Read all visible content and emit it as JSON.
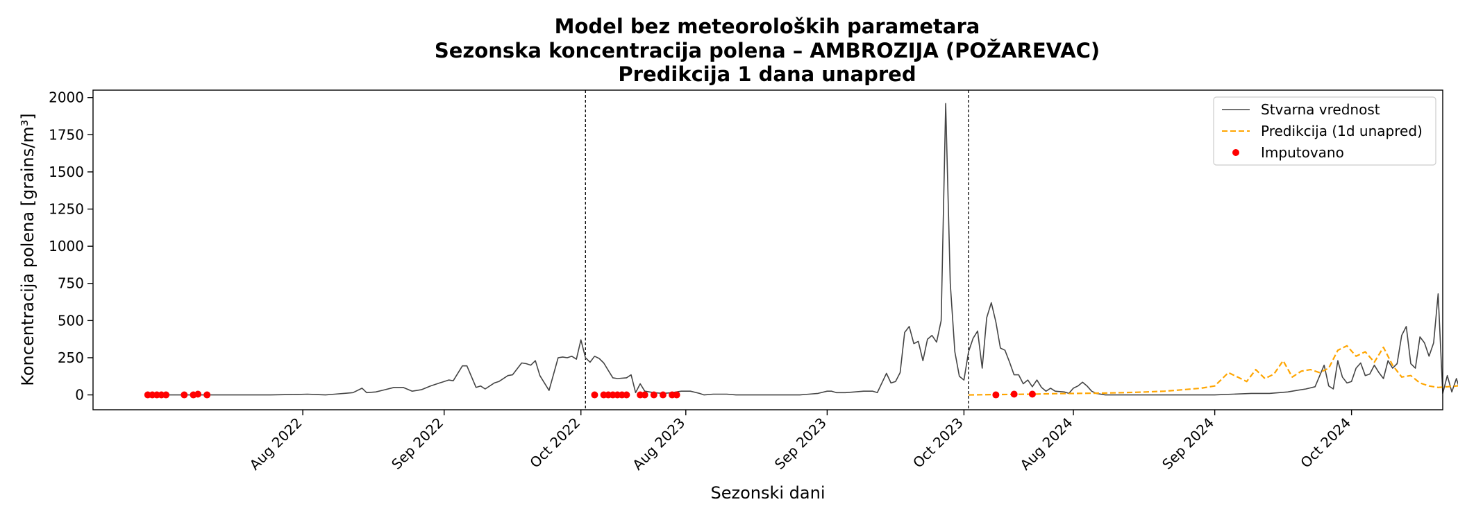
{
  "chart_data": {
    "type": "line",
    "title_lines": [
      "Model bez meteoroloških parametara",
      "Sezonska koncentracija polena – AMBROZIJA (POŽAREVAC)",
      "Predikcija 1 dana unapred"
    ],
    "xlabel": "Sezonski dani",
    "ylabel": "Koncentracija polena [grains/m³]",
    "ylim": [
      -100,
      2050
    ],
    "yticks": [
      0,
      250,
      500,
      750,
      1000,
      1250,
      1500,
      1750,
      2000
    ],
    "x_range_days": [
      -11,
      285
    ],
    "x_ticks": [
      {
        "day": 35,
        "label": "Aug 2022"
      },
      {
        "day": 66,
        "label": "Sep 2022"
      },
      {
        "day": 96,
        "label": "Oct 2022"
      },
      {
        "day": 119,
        "label": "Aug 2023"
      },
      {
        "day": 150,
        "label": "Sep 2023"
      },
      {
        "day": 180,
        "label": "Oct 2023"
      },
      {
        "day": 204,
        "label": "Aug 2024"
      },
      {
        "day": 235,
        "label": "Sep 2024"
      },
      {
        "day": 265,
        "label": "Oct 2024"
      }
    ],
    "season_boundaries": [
      97,
      181
    ],
    "grid": false,
    "legend_position": "top-right",
    "legend": {
      "actual": "Stvarna vrednost",
      "prediction": "Predikcija (1d unapred)",
      "imputed": "Imputovano"
    },
    "series": [
      {
        "name": "Stvarna vrednost",
        "color": "#444444",
        "points": [
          [
            1,
            0
          ],
          [
            4,
            0
          ],
          [
            8,
            0
          ],
          [
            12,
            0
          ],
          [
            16,
            0
          ],
          [
            20,
            0
          ],
          [
            24,
            0
          ],
          [
            28,
            0
          ],
          [
            32,
            2
          ],
          [
            34,
            3
          ],
          [
            36,
            5
          ],
          [
            38,
            2
          ],
          [
            40,
            0
          ],
          [
            42,
            5
          ],
          [
            44,
            10
          ],
          [
            46,
            15
          ],
          [
            48,
            45
          ],
          [
            49,
            15
          ],
          [
            51,
            20
          ],
          [
            53,
            35
          ],
          [
            55,
            50
          ],
          [
            57,
            50
          ],
          [
            59,
            25
          ],
          [
            61,
            35
          ],
          [
            63,
            60
          ],
          [
            65,
            80
          ],
          [
            67,
            100
          ],
          [
            68,
            95
          ],
          [
            70,
            195
          ],
          [
            71,
            195
          ],
          [
            73,
            50
          ],
          [
            74,
            60
          ],
          [
            75,
            40
          ],
          [
            77,
            80
          ],
          [
            78,
            90
          ],
          [
            80,
            130
          ],
          [
            81,
            135
          ],
          [
            83,
            215
          ],
          [
            84,
            210
          ],
          [
            85,
            200
          ],
          [
            86,
            230
          ],
          [
            87,
            130
          ],
          [
            88,
            80
          ],
          [
            89,
            30
          ],
          [
            91,
            250
          ],
          [
            92,
            255
          ],
          [
            93,
            250
          ],
          [
            94,
            260
          ],
          [
            95,
            240
          ],
          [
            96,
            370
          ],
          [
            97,
            250
          ],
          [
            98,
            220
          ],
          [
            99,
            260
          ],
          [
            100,
            245
          ],
          [
            101,
            215
          ],
          [
            102,
            165
          ],
          [
            103,
            115
          ],
          [
            104,
            110
          ],
          [
            106,
            115
          ],
          [
            107,
            135
          ],
          [
            108,
            15
          ],
          [
            109,
            75
          ],
          [
            110,
            25
          ],
          [
            112,
            15
          ],
          [
            114,
            10
          ],
          [
            116,
            15
          ],
          [
            118,
            25
          ],
          [
            120,
            25
          ],
          [
            122,
            10
          ],
          [
            123,
            0
          ],
          [
            125,
            5
          ],
          [
            127,
            5
          ],
          [
            128,
            5
          ],
          [
            130,
            0
          ],
          [
            132,
            0
          ],
          [
            134,
            0
          ],
          [
            136,
            0
          ],
          [
            138,
            0
          ],
          [
            140,
            0
          ],
          [
            142,
            0
          ],
          [
            144,
            0
          ],
          [
            146,
            5
          ],
          [
            148,
            10
          ],
          [
            150,
            25
          ],
          [
            151,
            25
          ],
          [
            152,
            15
          ],
          [
            154,
            15
          ],
          [
            156,
            20
          ],
          [
            158,
            25
          ],
          [
            160,
            25
          ],
          [
            161,
            15
          ],
          [
            162,
            80
          ],
          [
            163,
            145
          ],
          [
            164,
            80
          ],
          [
            165,
            90
          ],
          [
            166,
            150
          ],
          [
            167,
            420
          ],
          [
            168,
            460
          ],
          [
            169,
            345
          ],
          [
            170,
            360
          ],
          [
            171,
            230
          ],
          [
            172,
            375
          ],
          [
            173,
            400
          ],
          [
            174,
            355
          ],
          [
            175,
            500
          ],
          [
            176,
            1960
          ],
          [
            177,
            750
          ],
          [
            178,
            290
          ],
          [
            179,
            125
          ],
          [
            180,
            100
          ],
          [
            181,
            290
          ],
          [
            182,
            380
          ],
          [
            183,
            430
          ],
          [
            184,
            180
          ],
          [
            185,
            520
          ],
          [
            186,
            620
          ],
          [
            187,
            490
          ],
          [
            188,
            315
          ],
          [
            189,
            300
          ],
          [
            190,
            220
          ],
          [
            191,
            135
          ],
          [
            192,
            135
          ],
          [
            193,
            75
          ],
          [
            194,
            100
          ],
          [
            195,
            55
          ],
          [
            196,
            100
          ],
          [
            197,
            50
          ],
          [
            198,
            25
          ],
          [
            199,
            45
          ],
          [
            200,
            25
          ],
          [
            202,
            20
          ],
          [
            203,
            10
          ],
          [
            204,
            45
          ],
          [
            205,
            60
          ],
          [
            206,
            85
          ],
          [
            207,
            60
          ],
          [
            208,
            25
          ],
          [
            209,
            10
          ],
          [
            211,
            0
          ],
          [
            215,
            0
          ],
          [
            219,
            0
          ],
          [
            223,
            0
          ],
          [
            227,
            0
          ],
          [
            231,
            0
          ],
          [
            235,
            0
          ],
          [
            239,
            5
          ],
          [
            243,
            10
          ],
          [
            247,
            10
          ],
          [
            251,
            20
          ],
          [
            253,
            30
          ],
          [
            255,
            40
          ],
          [
            257,
            55
          ],
          [
            259,
            200
          ],
          [
            260,
            60
          ],
          [
            261,
            40
          ],
          [
            262,
            230
          ],
          [
            263,
            120
          ],
          [
            264,
            80
          ],
          [
            265,
            90
          ],
          [
            266,
            180
          ],
          [
            267,
            215
          ],
          [
            268,
            130
          ],
          [
            269,
            140
          ],
          [
            270,
            200
          ],
          [
            271,
            150
          ],
          [
            272,
            110
          ],
          [
            273,
            230
          ],
          [
            274,
            180
          ],
          [
            275,
            210
          ],
          [
            276,
            400
          ],
          [
            277,
            460
          ],
          [
            278,
            210
          ],
          [
            279,
            180
          ],
          [
            280,
            390
          ],
          [
            281,
            350
          ],
          [
            282,
            260
          ],
          [
            283,
            350
          ],
          [
            284,
            680
          ],
          [
            285,
            10
          ],
          [
            286,
            130
          ],
          [
            287,
            20
          ],
          [
            288,
            110
          ],
          [
            289,
            10
          ],
          [
            290,
            20
          ],
          [
            291,
            40
          ],
          [
            292,
            80
          ],
          [
            293,
            60
          ],
          [
            294,
            100
          ],
          [
            295,
            120
          ],
          [
            296,
            95
          ],
          [
            297,
            70
          ],
          [
            298,
            100
          ],
          [
            299,
            70
          ],
          [
            300,
            10
          ],
          [
            301,
            5
          ],
          [
            302,
            60
          ],
          [
            303,
            20
          ],
          [
            304,
            10
          ],
          [
            305,
            0
          ]
        ]
      },
      {
        "name": "Predikcija (1d unapred)",
        "color": "#ffa500",
        "points": [
          [
            181,
            0
          ],
          [
            186,
            2
          ],
          [
            190,
            3
          ],
          [
            195,
            5
          ],
          [
            200,
            8
          ],
          [
            205,
            10
          ],
          [
            210,
            12
          ],
          [
            215,
            15
          ],
          [
            220,
            20
          ],
          [
            224,
            25
          ],
          [
            228,
            35
          ],
          [
            232,
            45
          ],
          [
            235,
            60
          ],
          [
            238,
            150
          ],
          [
            240,
            120
          ],
          [
            242,
            90
          ],
          [
            244,
            170
          ],
          [
            246,
            110
          ],
          [
            248,
            140
          ],
          [
            250,
            230
          ],
          [
            252,
            120
          ],
          [
            254,
            160
          ],
          [
            256,
            170
          ],
          [
            258,
            150
          ],
          [
            260,
            180
          ],
          [
            262,
            300
          ],
          [
            264,
            330
          ],
          [
            266,
            260
          ],
          [
            268,
            290
          ],
          [
            270,
            220
          ],
          [
            272,
            320
          ],
          [
            274,
            200
          ],
          [
            276,
            120
          ],
          [
            278,
            130
          ],
          [
            280,
            80
          ],
          [
            282,
            60
          ],
          [
            284,
            50
          ],
          [
            286,
            55
          ],
          [
            288,
            60
          ],
          [
            290,
            65
          ],
          [
            292,
            60
          ],
          [
            294,
            55
          ],
          [
            296,
            60
          ],
          [
            298,
            45
          ],
          [
            300,
            30
          ],
          [
            302,
            20
          ],
          [
            305,
            10
          ]
        ]
      }
    ],
    "imputed_points": [
      {
        "day": 1,
        "value": 0
      },
      {
        "day": 2,
        "value": 0
      },
      {
        "day": 3,
        "value": 0
      },
      {
        "day": 4,
        "value": 0
      },
      {
        "day": 5,
        "value": 0
      },
      {
        "day": 9,
        "value": 0
      },
      {
        "day": 11,
        "value": 0
      },
      {
        "day": 12,
        "value": 5
      },
      {
        "day": 14,
        "value": 0
      },
      {
        "day": 99,
        "value": 0
      },
      {
        "day": 101,
        "value": 0
      },
      {
        "day": 102,
        "value": 0
      },
      {
        "day": 103,
        "value": 0
      },
      {
        "day": 104,
        "value": 0
      },
      {
        "day": 105,
        "value": 0
      },
      {
        "day": 106,
        "value": 0
      },
      {
        "day": 109,
        "value": 0
      },
      {
        "day": 110,
        "value": 0
      },
      {
        "day": 112,
        "value": 0
      },
      {
        "day": 114,
        "value": 0
      },
      {
        "day": 116,
        "value": 0
      },
      {
        "day": 117,
        "value": 0
      },
      {
        "day": 187,
        "value": 0
      },
      {
        "day": 191,
        "value": 5
      },
      {
        "day": 195,
        "value": 5
      }
    ],
    "colors": {
      "actual": "#444444",
      "prediction": "#ffa500",
      "imputed": "#ff0000",
      "boundary": "#000000"
    }
  }
}
